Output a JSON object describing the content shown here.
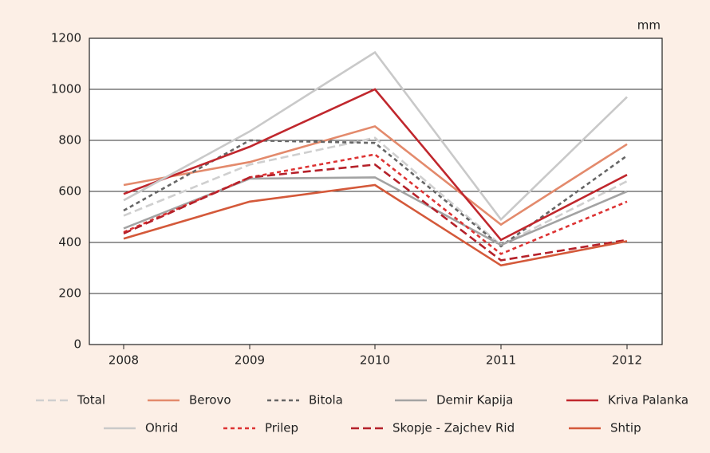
{
  "chart_data": {
    "type": "line",
    "y_label": "mm",
    "categories": [
      "2008",
      "2009",
      "2010",
      "2011",
      "2012"
    ],
    "ylim": [
      0,
      1200
    ],
    "yticks": [
      0,
      200,
      400,
      600,
      800,
      1000,
      1200
    ],
    "grid": true,
    "series": [
      {
        "name": "Total",
        "color": "#cfcfcf",
        "dash": "dashed",
        "values": [
          505,
          705,
          810,
          390,
          640
        ]
      },
      {
        "name": "Berovo",
        "color": "#e38a6c",
        "dash": "solid",
        "values": [
          625,
          715,
          855,
          470,
          785
        ]
      },
      {
        "name": "Bitola",
        "color": "#666666",
        "dash": "dotted",
        "values": [
          525,
          800,
          790,
          385,
          740
        ]
      },
      {
        "name": "Demir Kapija",
        "color": "#a3a3a3",
        "dash": "solid",
        "values": [
          455,
          650,
          655,
          390,
          600
        ]
      },
      {
        "name": "Kriva Palanka",
        "color": "#c0272d",
        "dash": "solid",
        "values": [
          590,
          775,
          1000,
          410,
          665
        ]
      },
      {
        "name": "Ohrid",
        "color": "#c9c9c9",
        "dash": "solid",
        "values": [
          565,
          835,
          1145,
          490,
          970
        ]
      },
      {
        "name": "Prilep",
        "color": "#dd3333",
        "dash": "dotted",
        "values": [
          440,
          655,
          745,
          355,
          560
        ]
      },
      {
        "name": "Skopje - Zajchev Rid",
        "color": "#b5212a",
        "dash": "dashed",
        "values": [
          435,
          655,
          705,
          330,
          410
        ]
      },
      {
        "name": "Shtip",
        "color": "#d4593a",
        "dash": "solid",
        "values": [
          415,
          560,
          625,
          310,
          405
        ]
      }
    ]
  }
}
